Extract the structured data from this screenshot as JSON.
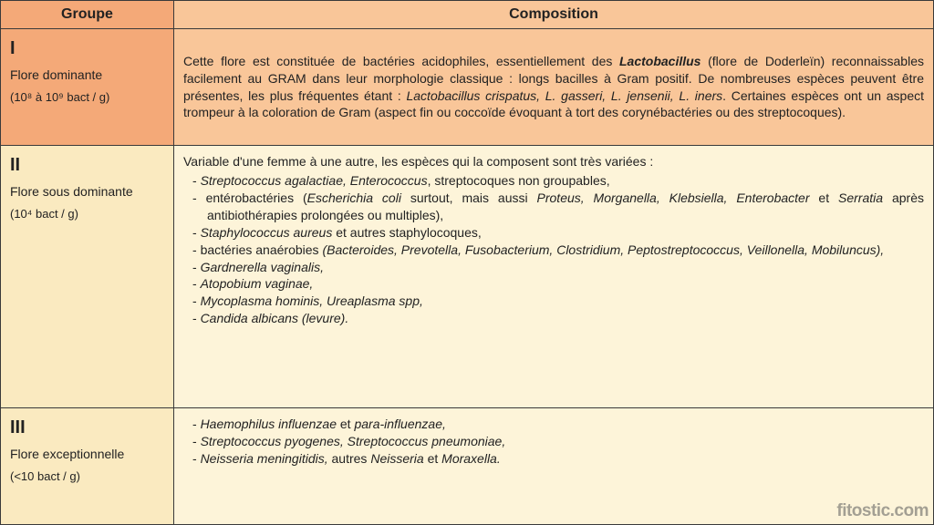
{
  "colors": {
    "header_left_bg": "#f4a978",
    "header_right_bg": "#f9c699",
    "row1_left_bg": "#f4a978",
    "row1_right_bg": "#f9c699",
    "row2_left_bg": "#faeac0",
    "row2_right_bg": "#fdf4d9",
    "row3_left_bg": "#faeac0",
    "row3_right_bg": "#fdf4d9",
    "border": "#3a3a3a",
    "text": "#222222"
  },
  "header": {
    "col1": "Groupe",
    "col2": "Composition"
  },
  "rows": [
    {
      "num": "I",
      "name": "Flore dominante",
      "qty": "(10⁸ à 10⁹ bact / g)",
      "comp_html": "Cette flore est constituée de bactéries acidophiles, essentiellement des <b><i>Lactobacillus</i></b> (flore de Doderleïn) reconnaissables facilement au GRAM dans leur morphologie classique : longs bacilles à Gram positif. De nombreuses espèces peuvent être présentes, les plus fréquentes étant : <i>Lactobacillus crispatus, L. gasseri, L. jensenii, L. iners</i>. Certaines espèces ont un aspect trompeur à la coloration de Gram (aspect fin ou coccoïde évoquant à tort des corynébactéries ou des streptocoques)."
    },
    {
      "num": "II",
      "name": "Flore sous dominante",
      "qty": "(10⁴ bact / g)",
      "comp_intro": "Variable d'une femme à une autre, les espèces qui la composent sont très variées :",
      "comp_items_html": [
        "<i>Streptococcus agalactiae, Enterococcus</i>, streptocoques non groupables,",
        "entérobactéries (<i>Escherichia coli</i> surtout, mais aussi <i>Proteus, Morganella, Klebsiella, Enterobacter</i> et <i>Serratia</i> après antibiothérapies prolongées ou multiples),",
        "<i>Staphylococcus aureus</i> et autres staphylocoques,",
        "bactéries anaérobies <i>(Bacteroides, Prevotella, Fusobacterium, Clostridium, Peptostreptococcus, Veillonella, Mobiluncus),</i>",
        "<i>Gardnerella vaginalis,</i>",
        "<i>Atopobium vaginae,</i>",
        "<i>Mycoplasma hominis, Ureaplasma spp,</i>",
        "<i>Candida albicans (levure).</i>"
      ]
    },
    {
      "num": "III",
      "name": "Flore exceptionnelle",
      "qty": "(<10 bact / g)",
      "comp_items_html": [
        "<i>Haemophilus influenzae</i> et <i>para-influenzae,</i>",
        "<i>Streptococcus pyogenes, Streptococcus pneumoniae,</i>",
        "<i>Neisseria meningitidis,</i> autres <i>Neisseria</i> et <i>Moraxella.</i>"
      ]
    }
  ],
  "watermark": "fitostic.com"
}
